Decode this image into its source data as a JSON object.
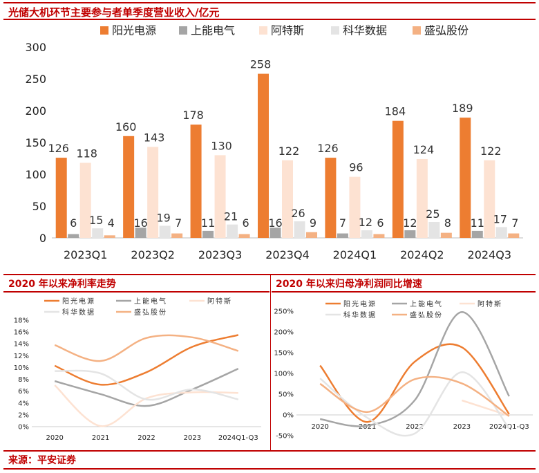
{
  "titles": {
    "top": "光储大机环节主要参与者单季度营业收入/亿元",
    "left": "2020 年以来净利率走势",
    "right": "2020 年以来归母净利润同比增速"
  },
  "source": "来源：平安证券",
  "colors": {
    "阳光电源": "#ed7d31",
    "上能电气": "#a5a5a5",
    "阿特斯": "#fde2d2",
    "科华数据": "#e4e4e4",
    "盛弘股份": "#f4b183",
    "accent": "#c00000"
  },
  "chart_data": [
    {
      "type": "bar",
      "title": "光储大机环节主要参与者单季度营业收入/亿元",
      "categories": [
        "2023Q1",
        "2023Q2",
        "2023Q3",
        "2023Q4",
        "2024Q1",
        "2024Q2",
        "2024Q3"
      ],
      "series": [
        {
          "name": "阳光电源",
          "values": [
            126,
            160,
            178,
            258,
            126,
            184,
            189
          ]
        },
        {
          "name": "上能电气",
          "values": [
            6,
            16,
            11,
            16,
            7,
            12,
            11
          ]
        },
        {
          "name": "阿特斯",
          "values": [
            118,
            143,
            130,
            122,
            96,
            124,
            122
          ]
        },
        {
          "name": "科华数据",
          "values": [
            15,
            19,
            21,
            26,
            12,
            25,
            17
          ]
        },
        {
          "name": "盛弘股份",
          "values": [
            4,
            7,
            6,
            9,
            6,
            8,
            7
          ]
        }
      ],
      "ylim": [
        0,
        300
      ],
      "yticks": [
        0,
        50,
        100,
        150,
        200,
        250,
        300
      ],
      "legend": "top"
    },
    {
      "type": "line",
      "title": "2020 年以来净利率走势",
      "categories": [
        "2020",
        "2021",
        "2022",
        "2023",
        "2024Q1-Q3"
      ],
      "series": [
        {
          "name": "阳光电源",
          "values": [
            10.3,
            7.1,
            9.2,
            13.5,
            15.5
          ]
        },
        {
          "name": "上能电气",
          "values": [
            7.7,
            5.5,
            3.5,
            6.3,
            9.8
          ]
        },
        {
          "name": "阿特斯",
          "values": [
            7.0,
            0.1,
            4.8,
            5.8,
            5.7
          ]
        },
        {
          "name": "科华数据",
          "values": [
            9.4,
            9.0,
            4.6,
            6.3,
            4.6
          ]
        },
        {
          "name": "盛弘股份",
          "values": [
            13.8,
            11.1,
            15.0,
            15.1,
            12.8
          ]
        }
      ],
      "ylim": [
        0,
        18
      ],
      "yticks": [
        "0%",
        "2%",
        "4%",
        "6%",
        "8%",
        "10%",
        "12%",
        "14%",
        "16%",
        "18%"
      ],
      "legend": "top"
    },
    {
      "type": "line",
      "title": "2020 年以来归母净利润同比增速",
      "categories": [
        "2020",
        "2021",
        "2022",
        "2023",
        "2024Q1-Q3"
      ],
      "series": [
        {
          "name": "阳光电源",
          "values": [
            119,
            -17,
            128,
            163,
            2
          ]
        },
        {
          "name": "上能电气",
          "values": [
            -10,
            -26,
            35,
            248,
            45
          ]
        },
        {
          "name": "阿特斯",
          "values": [
            null,
            null,
            null,
            35,
            -2
          ]
        },
        {
          "name": "科华数据",
          "values": [
            88,
            -7,
            -45,
            103,
            -33
          ]
        },
        {
          "name": "盛弘股份",
          "values": [
            75,
            7,
            86,
            76,
            -3
          ]
        }
      ],
      "ylim": [
        -50,
        250
      ],
      "yticks": [
        "-50%",
        "0%",
        "50%",
        "100%",
        "150%",
        "200%",
        "250%"
      ],
      "legend": "top"
    }
  ]
}
